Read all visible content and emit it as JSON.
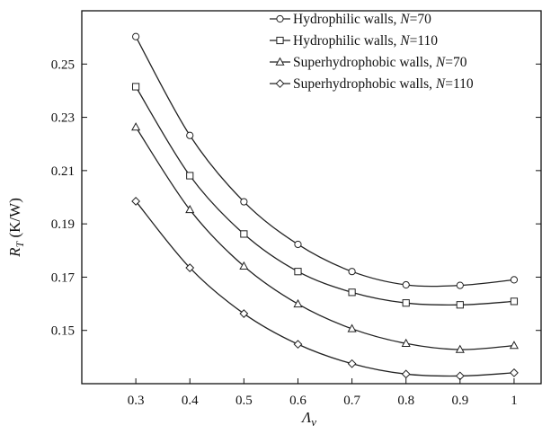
{
  "chart_data": {
    "type": "line",
    "title": "",
    "xlabel": "Λv",
    "ylabel": "R_T (K/W)",
    "ylabel_main": "R",
    "ylabel_sub": "T",
    "ylabel_unit": " (K/W)",
    "xlabel_main": "Λ",
    "xlabel_sub": "v",
    "xlim": [
      0.2,
      1.05
    ],
    "ylim": [
      0.13,
      0.27
    ],
    "x_ticks": [
      0.3,
      0.4,
      0.5,
      0.6,
      0.7,
      0.8,
      0.9,
      1
    ],
    "x_tick_labels": [
      "0.3",
      "0.4",
      "0.5",
      "0.6",
      "0.7",
      "0.8",
      "0.9",
      "1"
    ],
    "y_ticks": [
      0.15,
      0.17,
      0.19,
      0.21,
      0.23,
      0.25
    ],
    "y_tick_labels": [
      "0.15",
      "0.17",
      "0.19",
      "0.21",
      "0.23",
      "0.25"
    ],
    "grid": false,
    "legend_position": "top-right",
    "x": [
      0.3,
      0.4,
      0.5,
      0.6,
      0.7,
      0.8,
      0.9,
      1
    ],
    "series": [
      {
        "name": "Hydrophilic walls, N=70",
        "name_prefix": "Hydrophilic walls, ",
        "name_var": "N",
        "name_suffix": "=70",
        "marker": "circle",
        "values": [
          0.2603,
          0.2232,
          0.1983,
          0.1823,
          0.1721,
          0.1671,
          0.1669,
          0.169
        ]
      },
      {
        "name": "Hydrophilic walls, N=110",
        "name_prefix": "Hydrophilic walls, ",
        "name_var": "N",
        "name_suffix": "=110",
        "marker": "square",
        "values": [
          0.2415,
          0.2081,
          0.1862,
          0.1721,
          0.1643,
          0.1603,
          0.1596,
          0.1609
        ]
      },
      {
        "name": "Superhydrophobic walls, N=70",
        "name_prefix": "Superhydrophobic walls, ",
        "name_var": "N",
        "name_suffix": "=70",
        "marker": "triangle",
        "values": [
          0.2263,
          0.1953,
          0.1741,
          0.1599,
          0.1506,
          0.1451,
          0.1428,
          0.1443
        ]
      },
      {
        "name": "Superhydrophobic walls, N=110",
        "name_prefix": "Superhydrophobic walls, ",
        "name_var": "N",
        "name_suffix": "=110",
        "marker": "diamond",
        "values": [
          0.1985,
          0.1735,
          0.1563,
          0.1448,
          0.1375,
          0.1336,
          0.1329,
          0.1341
        ]
      }
    ],
    "colors": {
      "line": "#222222",
      "marker_fill": "#ffffff",
      "axis": "#111111"
    }
  }
}
